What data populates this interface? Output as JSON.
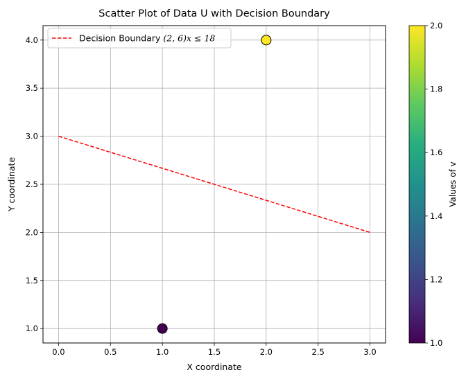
{
  "chart_data": {
    "type": "scatter",
    "title": "Scatter Plot of Data U with Decision Boundary",
    "xlabel": "X coordinate",
    "ylabel": "Y coordinate",
    "xlim": [
      -0.15,
      3.15
    ],
    "ylim": [
      0.85,
      4.15
    ],
    "xticks": [
      "0.0",
      "0.5",
      "1.0",
      "1.5",
      "2.0",
      "2.5",
      "3.0"
    ],
    "yticks": [
      "1.0",
      "1.5",
      "2.0",
      "2.5",
      "3.0",
      "3.5",
      "4.0"
    ],
    "grid": true,
    "points": [
      {
        "x": 1,
        "y": 1,
        "v": 1
      },
      {
        "x": 2,
        "y": 4,
        "v": 2
      }
    ],
    "boundary": {
      "x": [
        0,
        3
      ],
      "y": [
        3,
        2
      ],
      "color": "#ff0000",
      "style": "dashed"
    },
    "legend": {
      "placement": "top-left",
      "label_prefix": "Decision Boundary ",
      "label_math": "(2, 6)x ≤ 18"
    },
    "colorbar": {
      "label": "Values of v",
      "range": [
        1.0,
        2.0
      ],
      "ticks": [
        "1.0",
        "1.2",
        "1.4",
        "1.6",
        "1.8",
        "2.0"
      ],
      "colormap": "viridis"
    }
  }
}
